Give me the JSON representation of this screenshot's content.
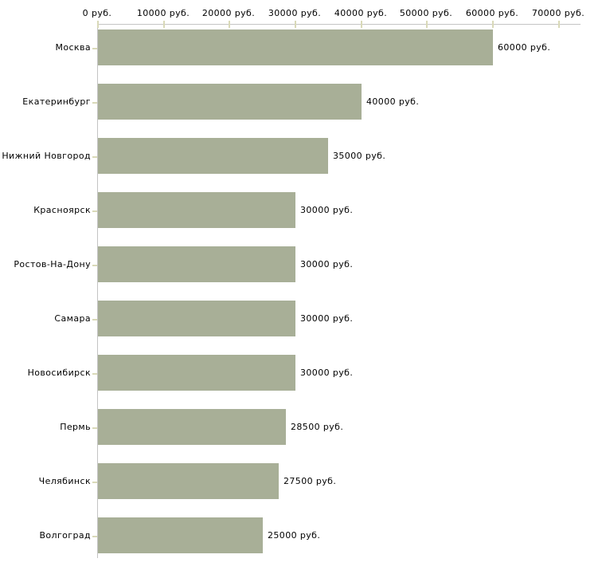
{
  "chart_data": {
    "type": "bar",
    "orientation": "horizontal",
    "title": "",
    "xlabel": "",
    "ylabel": "",
    "grid": false,
    "legend": null,
    "xlim": [
      0,
      70000
    ],
    "x_tick_values": [
      0,
      10000,
      20000,
      30000,
      40000,
      50000,
      60000,
      70000
    ],
    "x_tick_labels": [
      "0 руб.",
      "10000 руб.",
      "20000 руб.",
      "30000 руб.",
      "40000 руб.",
      "50000 руб.",
      "60000 руб.",
      "70000 руб."
    ],
    "categories": [
      "Москва",
      "Екатеринбург",
      "Нижний Новгород",
      "Красноярск",
      "Ростов-На-Дону",
      "Самара",
      "Новосибирск",
      "Пермь",
      "Челябинск",
      "Волгоград"
    ],
    "values": [
      60000,
      40000,
      35000,
      30000,
      30000,
      30000,
      30000,
      28500,
      27500,
      25000
    ],
    "value_labels": [
      "60000 руб.",
      "40000 руб.",
      "35000 руб.",
      "30000 руб.",
      "30000 руб.",
      "30000 руб.",
      "30000 руб.",
      "28500 руб.",
      "27500 руб.",
      "25000 руб."
    ],
    "colors": {
      "bar_fill": "#a8af97",
      "axis_line": "#c4c4c4",
      "tick_mark": "#d9d9b8",
      "label_text": "#000000",
      "background": "#ffffff"
    }
  }
}
